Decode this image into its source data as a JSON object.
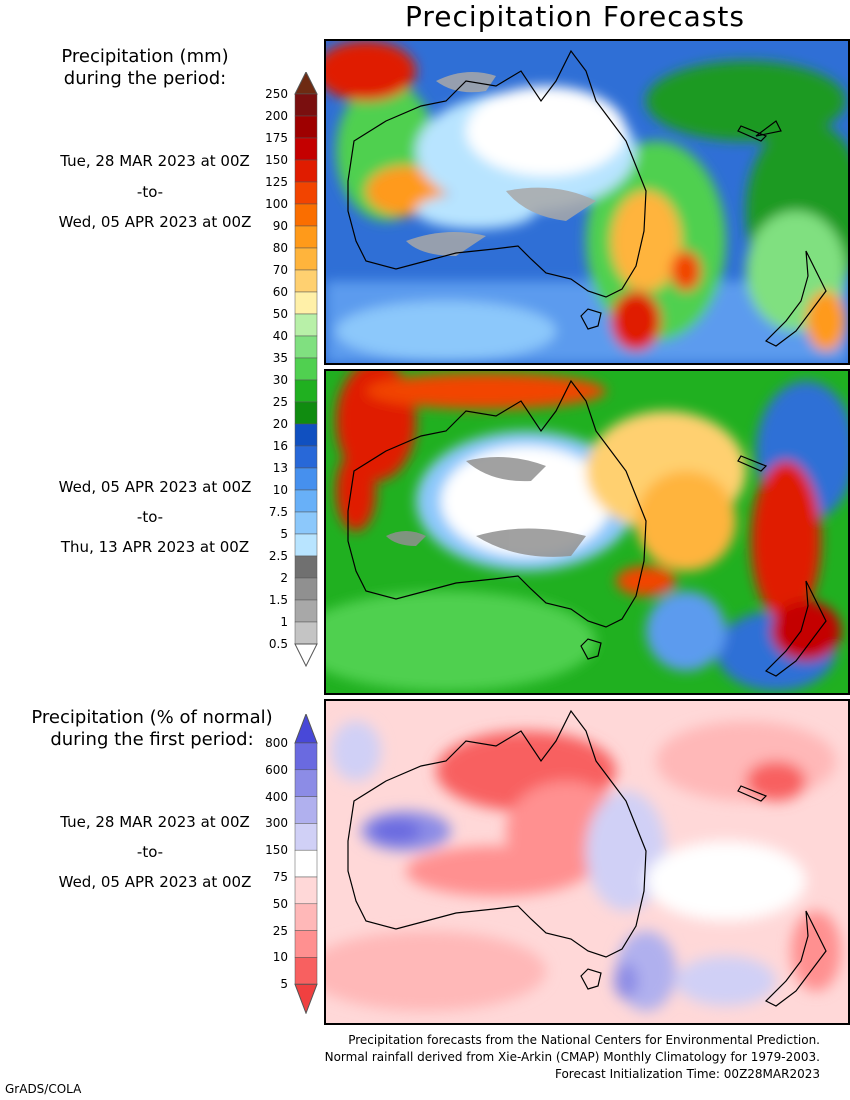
{
  "title": "Precipitation Forecasts",
  "panel1": {
    "label_line1": "Precipitation (mm)",
    "label_line2": "during the period:",
    "start": "Tue, 28 MAR 2023 at 00Z",
    "to": "-to-",
    "end": "Wed, 05 APR 2023 at 00Z"
  },
  "panel2": {
    "start": "Wed, 05 APR 2023 at 00Z",
    "to": "-to-",
    "end": "Thu, 13 APR 2023 at 00Z"
  },
  "panel3": {
    "label_line1": "Precipitation (% of normal)",
    "label_line2": "during the first period:",
    "start": "Tue, 28 MAR 2023 at 00Z",
    "to": "-to-",
    "end": "Wed, 05 APR 2023 at 00Z"
  },
  "mm_scale": {
    "labels": [
      "250",
      "200",
      "175",
      "150",
      "125",
      "100",
      "90",
      "80",
      "70",
      "60",
      "50",
      "40",
      "35",
      "30",
      "25",
      "20",
      "16",
      "13",
      "10",
      "7.5",
      "5",
      "2.5",
      "2",
      "1.5",
      "1",
      "0.5"
    ],
    "colors": [
      "#6e2a12",
      "#7a0f0f",
      "#9e0000",
      "#c40000",
      "#e01c00",
      "#f24400",
      "#fa6e00",
      "#ff9a1a",
      "#ffb43c",
      "#ffd070",
      "#fff0a8",
      "#b8f0a8",
      "#80e080",
      "#50d050",
      "#20b020",
      "#108c10",
      "#1050c0",
      "#2868d8",
      "#4690ee",
      "#68b0f8",
      "#8cc8fb",
      "#b8e4ff",
      "#707070",
      "#909090",
      "#a8a8a8",
      "#c4c4c4",
      "#ffffff"
    ]
  },
  "pct_scale": {
    "labels": [
      "800",
      "600",
      "400",
      "300",
      "150",
      "75",
      "50",
      "25",
      "10",
      "5"
    ],
    "colors": [
      "#4848d8",
      "#6a6ae0",
      "#8c8ce6",
      "#b0b0ee",
      "#d0d0f6",
      "#ffffff",
      "#ffd8d8",
      "#ffb8b8",
      "#ff9090",
      "#f86060",
      "#f04040"
    ]
  },
  "footer": {
    "line1": "Precipitation forecasts from the National Centers for Environmental Prediction.",
    "line2": "Normal rainfall derived from Xie-Arkin (CMAP) Monthly Climatology for 1979-2003.",
    "line3": "Forecast Initialization Time: 00Z28MAR2023"
  },
  "credit": "GrADS/COLA"
}
